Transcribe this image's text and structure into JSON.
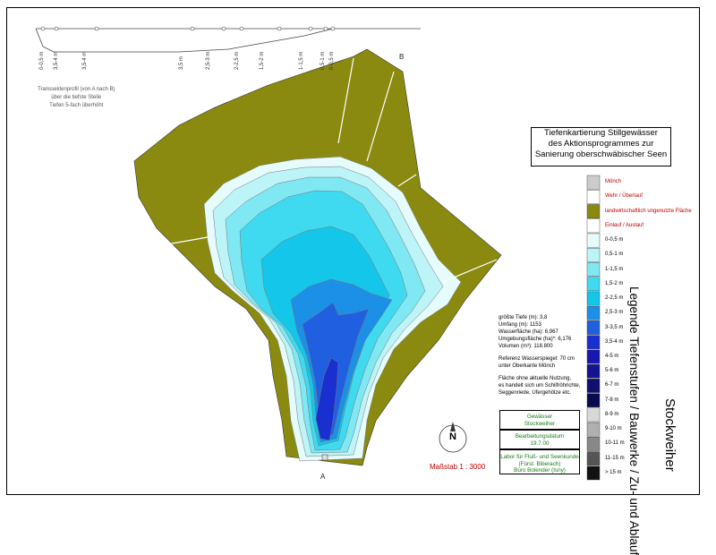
{
  "title": {
    "line1": "Tiefenkartierung Stillgewässer",
    "line2": "des Aktionsprogrammes zur",
    "line3": "Sanierung oberschwäbischer Seen"
  },
  "vertical_title": "Legende Tiefenstufen / Bauwerke / Zu- und Ablauf",
  "lake_name": "Stockweiher",
  "transect_note": {
    "line1": "Transsektenprofil (von A nach B)",
    "line2": "über die tiefste Stelle",
    "line3": "Tiefen 5-fach überhöht"
  },
  "point_a": "A",
  "point_b": "B",
  "profile_labels": [
    "0-0,5 m",
    "3,5-4 m",
    "3,5-4 m",
    "3,5 m",
    "2,5-3 m",
    "2-2,5 m",
    "1,5-2 m",
    "1-1,5 m",
    "0,5-1 m",
    "0-0,5 m"
  ],
  "legend_items": [
    {
      "label": "Mönch",
      "color": "#cccccc",
      "red": true
    },
    {
      "label": "Wehr / Überlauf",
      "color": "#ffffff",
      "red": true
    },
    {
      "label": "landwirtschaftlich ungenutzte Fläche",
      "color": "#8a8a10",
      "red": true
    },
    {
      "label": "Einlauf / Auslauf",
      "color": "#ffffff",
      "red": true
    },
    {
      "label": "0-0,5 m",
      "color": "#e6fbfb"
    },
    {
      "label": "0,5-1 m",
      "color": "#bdf4f8"
    },
    {
      "label": "1-1,5 m",
      "color": "#7fe8f3"
    },
    {
      "label": "1,5-2 m",
      "color": "#3fdaf0"
    },
    {
      "label": "2-2,5 m",
      "color": "#14c6ea"
    },
    {
      "label": "2,5-3 m",
      "color": "#1c8fe6"
    },
    {
      "label": "3-3,5 m",
      "color": "#1f5fe0"
    },
    {
      "label": "3,5-4 m",
      "color": "#1a2fd0"
    },
    {
      "label": "4-5 m",
      "color": "#1818b0"
    },
    {
      "label": "5-6 m",
      "color": "#141490"
    },
    {
      "label": "6-7 m",
      "color": "#101070"
    },
    {
      "label": "7-8 m",
      "color": "#0a0a50"
    },
    {
      "label": "8-9 m",
      "color": "#d8d8d8"
    },
    {
      "label": "9-10 m",
      "color": "#b0b0b0"
    },
    {
      "label": "10-11 m",
      "color": "#888888"
    },
    {
      "label": "11-15 m",
      "color": "#555555"
    },
    {
      "label": "> 15 m",
      "color": "#111111"
    }
  ],
  "stats": {
    "max_depth": "größte Tiefe (m): 3,8",
    "perimeter": "Umfang (m): 1153",
    "water_area": "Wasserfläche (ha): 6,967",
    "surrounding_area": "Umgebungsfläche (ha)*: 6,176",
    "volume": "Volumen (m³): 118.800",
    "reference1": "Referenz Wasserspiegel: 70 cm",
    "reference2": "unter Oberkante Mönch",
    "note1": "Fläche ohne aktuelle Nutzung,",
    "note2": "es handelt sich um Schilfröhrichte,",
    "note3": "Seggenriede, Ufergehölze etc."
  },
  "info": {
    "water_label": "Gewässer",
    "water_value": "Stockweiher",
    "date_label": "Bearbeitungsdatum",
    "date_value": "19.7.00",
    "lab1": "Labor für Fluß- und Seenkunde",
    "lab2": "(Fürst. Biberach)",
    "lab3": "Büro Bolender (Isny)"
  },
  "north": "N",
  "scale": "Maßstab 1 : 3000",
  "colors": {
    "land": "#8a8a10",
    "accent_red": "#c00000"
  }
}
